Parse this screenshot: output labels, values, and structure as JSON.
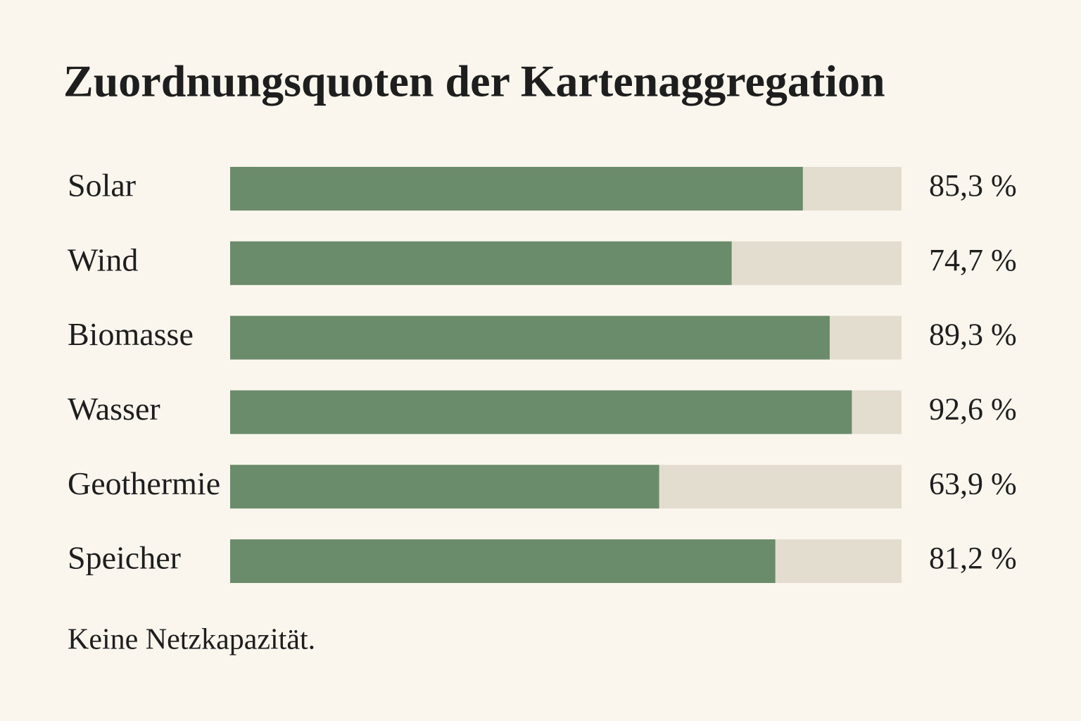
{
  "chart_data": {
    "type": "bar",
    "title": "Zuordnungsquoten der Kartenaggregation",
    "categories": [
      "Solar",
      "Wind",
      "Biomasse",
      "Wasser",
      "Geothermie",
      "Speicher"
    ],
    "values": [
      85.3,
      74.7,
      89.3,
      92.6,
      63.9,
      81.2
    ],
    "value_labels": [
      "85,3 %",
      "74,7 %",
      "89,3 %",
      "92,6 %",
      "63,9 %",
      "81,2 %"
    ],
    "color": "#6a8c6a",
    "track_color": "#e3ddd0",
    "xlim": [
      0,
      100
    ],
    "note": "Keine Netzkapazität."
  }
}
